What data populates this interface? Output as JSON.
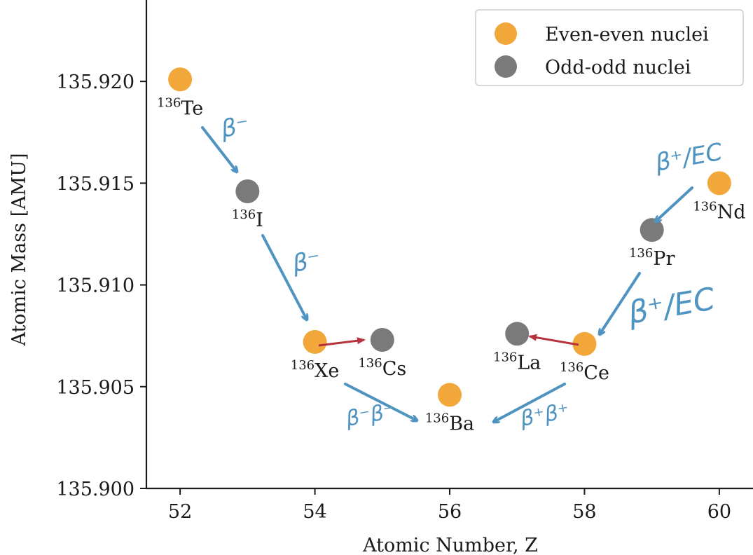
{
  "chart_data": {
    "type": "scatter",
    "xlabel": "Atomic Number, Z",
    "ylabel": "Atomic Mass [AMU]",
    "xlim": [
      51.5,
      60.5
    ],
    "ylim": [
      135.9,
      135.924
    ],
    "xticks": [
      "52",
      "54",
      "56",
      "58",
      "60"
    ],
    "yticks": [
      "135.900",
      "135.905",
      "135.910",
      "135.915",
      "135.920"
    ],
    "grid": false,
    "legend_position": "top-right",
    "series": [
      {
        "name": "Even-even nuclei",
        "color": "#f1a73a",
        "points": [
          {
            "z": 52,
            "mass": 135.9201,
            "mass_number": "136",
            "element": "Te"
          },
          {
            "z": 54,
            "mass": 135.9072,
            "mass_number": "136",
            "element": "Xe"
          },
          {
            "z": 56,
            "mass": 135.9046,
            "mass_number": "136",
            "element": "Ba"
          },
          {
            "z": 58,
            "mass": 135.9071,
            "mass_number": "136",
            "element": "Ce"
          },
          {
            "z": 60,
            "mass": 135.915,
            "mass_number": "136",
            "element": "Nd"
          }
        ]
      },
      {
        "name": "Odd-odd nuclei",
        "color": "#7a7a7a",
        "points": [
          {
            "z": 53,
            "mass": 135.9146,
            "mass_number": "136",
            "element": "I"
          },
          {
            "z": 55,
            "mass": 135.9073,
            "mass_number": "136",
            "element": "Cs"
          },
          {
            "z": 57,
            "mass": 135.9076,
            "mass_number": "136",
            "element": "La"
          },
          {
            "z": 59,
            "mass": 135.9127,
            "mass_number": "136",
            "element": "Pr"
          }
        ]
      }
    ],
    "annotations": [
      "β⁻",
      "β⁻",
      "β⁻β⁻",
      "β⁺β⁺",
      "β⁺/EC",
      "β⁺/EC"
    ]
  }
}
